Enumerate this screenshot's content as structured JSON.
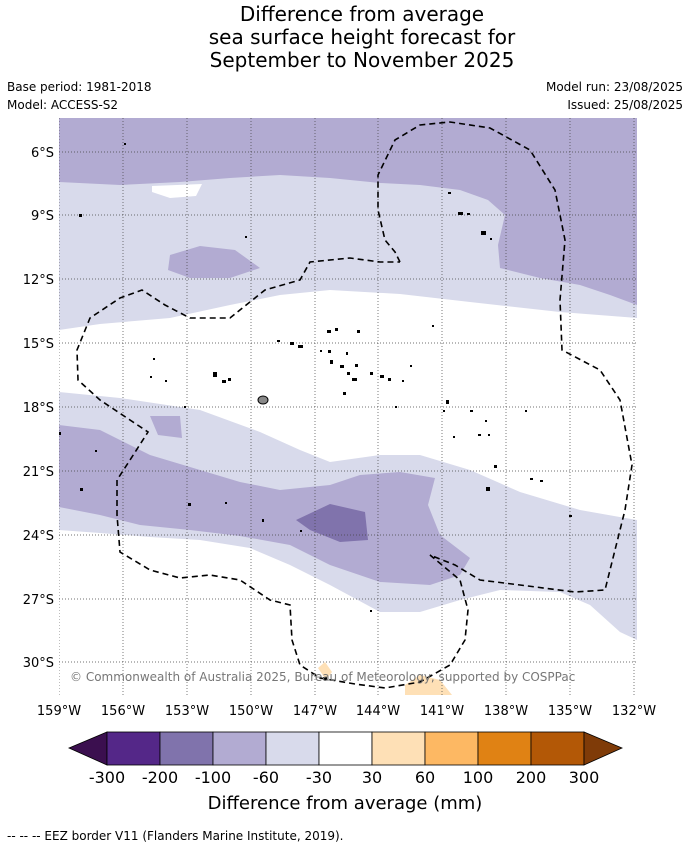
{
  "title": {
    "line1": "Difference from average",
    "line2": "sea surface height forecast for",
    "line3": "September to November 2025"
  },
  "meta": {
    "base_period": "Base period: 1981-2018",
    "model": "Model: ACCESS-S2",
    "model_run": "Model run: 23/08/2025",
    "issued": "Issued: 25/08/2025"
  },
  "map": {
    "lat_labels": [
      "6°S",
      "9°S",
      "12°S",
      "15°S",
      "18°S",
      "21°S",
      "24°S",
      "27°S",
      "30°S"
    ],
    "lon_labels": [
      "159°W",
      "156°W",
      "153°W",
      "150°W",
      "147°W",
      "144°W",
      "141°W",
      "138°W",
      "135°W",
      "132°W"
    ],
    "copyright": "© Commonwealth of Australia 2025, Bureau of Meteorology, supported by COSPPac"
  },
  "colorbar": {
    "title": "Difference from average (mm)",
    "tick_labels": [
      "-300",
      "-200",
      "-100",
      "-60",
      "-30",
      "30",
      "60",
      "100",
      "200",
      "300"
    ],
    "under_color": "#3b0f4f",
    "over_color": "#7f3b08",
    "colors": [
      "#542788",
      "#8073ac",
      "#b2abd2",
      "#d8daeb",
      "#ffffff",
      "#fee0b6",
      "#fdb863",
      "#e08214",
      "#b35806"
    ]
  },
  "footer": "--  --  -- EEZ border V11 (Flanders Marine Institute, 2019)."
}
